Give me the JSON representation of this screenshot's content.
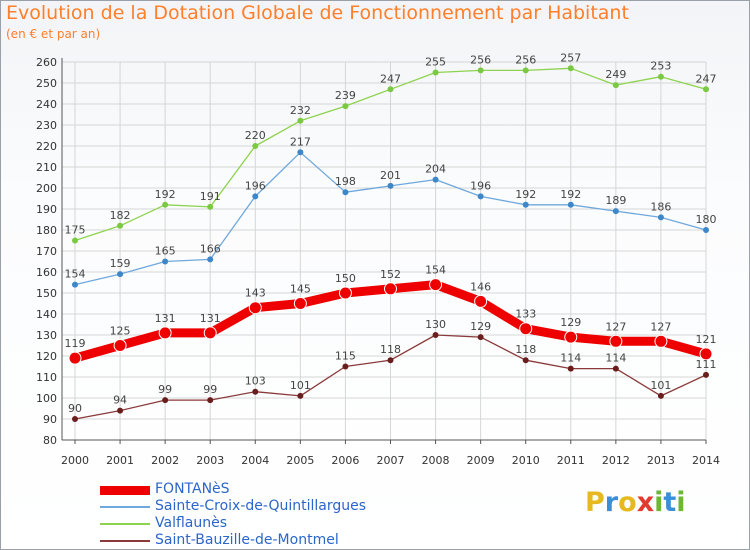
{
  "title": "Evolution de la Dotation Globale de Fonctionnement par Habitant",
  "subtitle": "(en € et par an)",
  "brand": {
    "letters": [
      "P",
      "r",
      "o",
      "x",
      "i",
      "t",
      "i"
    ],
    "colors": [
      "#e8b820",
      "#3a8fd6",
      "#e8b820",
      "#e23a2e",
      "#6bb834",
      "#3a8fd6",
      "#6bb834"
    ]
  },
  "chart_data": {
    "type": "line",
    "x": [
      "2000",
      "2001",
      "2002",
      "2003",
      "2004",
      "2005",
      "2006",
      "2007",
      "2008",
      "2009",
      "2010",
      "2011",
      "2012",
      "2013",
      "2014"
    ],
    "ylim": [
      80,
      260
    ],
    "yticks": [
      80,
      90,
      100,
      110,
      120,
      130,
      140,
      150,
      160,
      170,
      180,
      190,
      200,
      210,
      220,
      230,
      240,
      250,
      260
    ],
    "grid": true,
    "legend_position": "bottom-left",
    "series": [
      {
        "name": "Valflaunès",
        "color": "#8ed34f",
        "point_color": "#7bc843",
        "width": 1.3,
        "radius": 3,
        "values": [
          175,
          182,
          192,
          191,
          220,
          232,
          239,
          247,
          255,
          256,
          256,
          257,
          249,
          253,
          247
        ],
        "labels": [
          "175",
          "182",
          "192",
          "191",
          "220",
          "232",
          "239",
          "247",
          "255",
          "256",
          "256",
          "257",
          "249",
          "253",
          "247"
        ]
      },
      {
        "name": "Sainte-Croix-de-Quintillargues",
        "color": "#6fa8dc",
        "point_color": "#3d86c8",
        "width": 1.3,
        "radius": 3,
        "values": [
          154,
          159,
          165,
          166,
          196,
          217,
          198,
          201,
          204,
          196,
          192,
          192,
          189,
          186,
          180
        ],
        "labels": [
          "154",
          "159",
          "165",
          "166",
          "196",
          "217",
          "198",
          "201",
          "204",
          "196",
          "192",
          "192",
          "189",
          "186",
          "180"
        ]
      },
      {
        "name": "FONTANèS",
        "color": "#ee0000",
        "point_color": "#ee0000",
        "width": 9,
        "radius": 6,
        "values": [
          119,
          125,
          131,
          131,
          143,
          145,
          150,
          152,
          154,
          146,
          133,
          129,
          127,
          127,
          121
        ],
        "labels": [
          "119",
          "125",
          "131",
          "131",
          "143",
          "145",
          "150",
          "152",
          "154",
          "146",
          "133",
          "129",
          "127",
          "127",
          "121"
        ]
      },
      {
        "name": "Saint-Bauzille-de-Montmel",
        "color": "#8a3a3a",
        "point_color": "#6a1d1d",
        "width": 1.3,
        "radius": 3,
        "values": [
          90,
          94,
          99,
          99,
          103,
          101,
          115,
          118,
          130,
          129,
          118,
          114,
          114,
          101,
          111
        ],
        "labels": [
          "90",
          "94",
          "99",
          "99",
          "103",
          "101",
          "115",
          "118",
          "130",
          "129",
          "118",
          "114",
          "114",
          "101",
          "111"
        ]
      }
    ],
    "legend_order": [
      "FONTANèS",
      "Sainte-Croix-de-Quintillargues",
      "Valflaunès",
      "Saint-Bauzille-de-Montmel"
    ]
  }
}
